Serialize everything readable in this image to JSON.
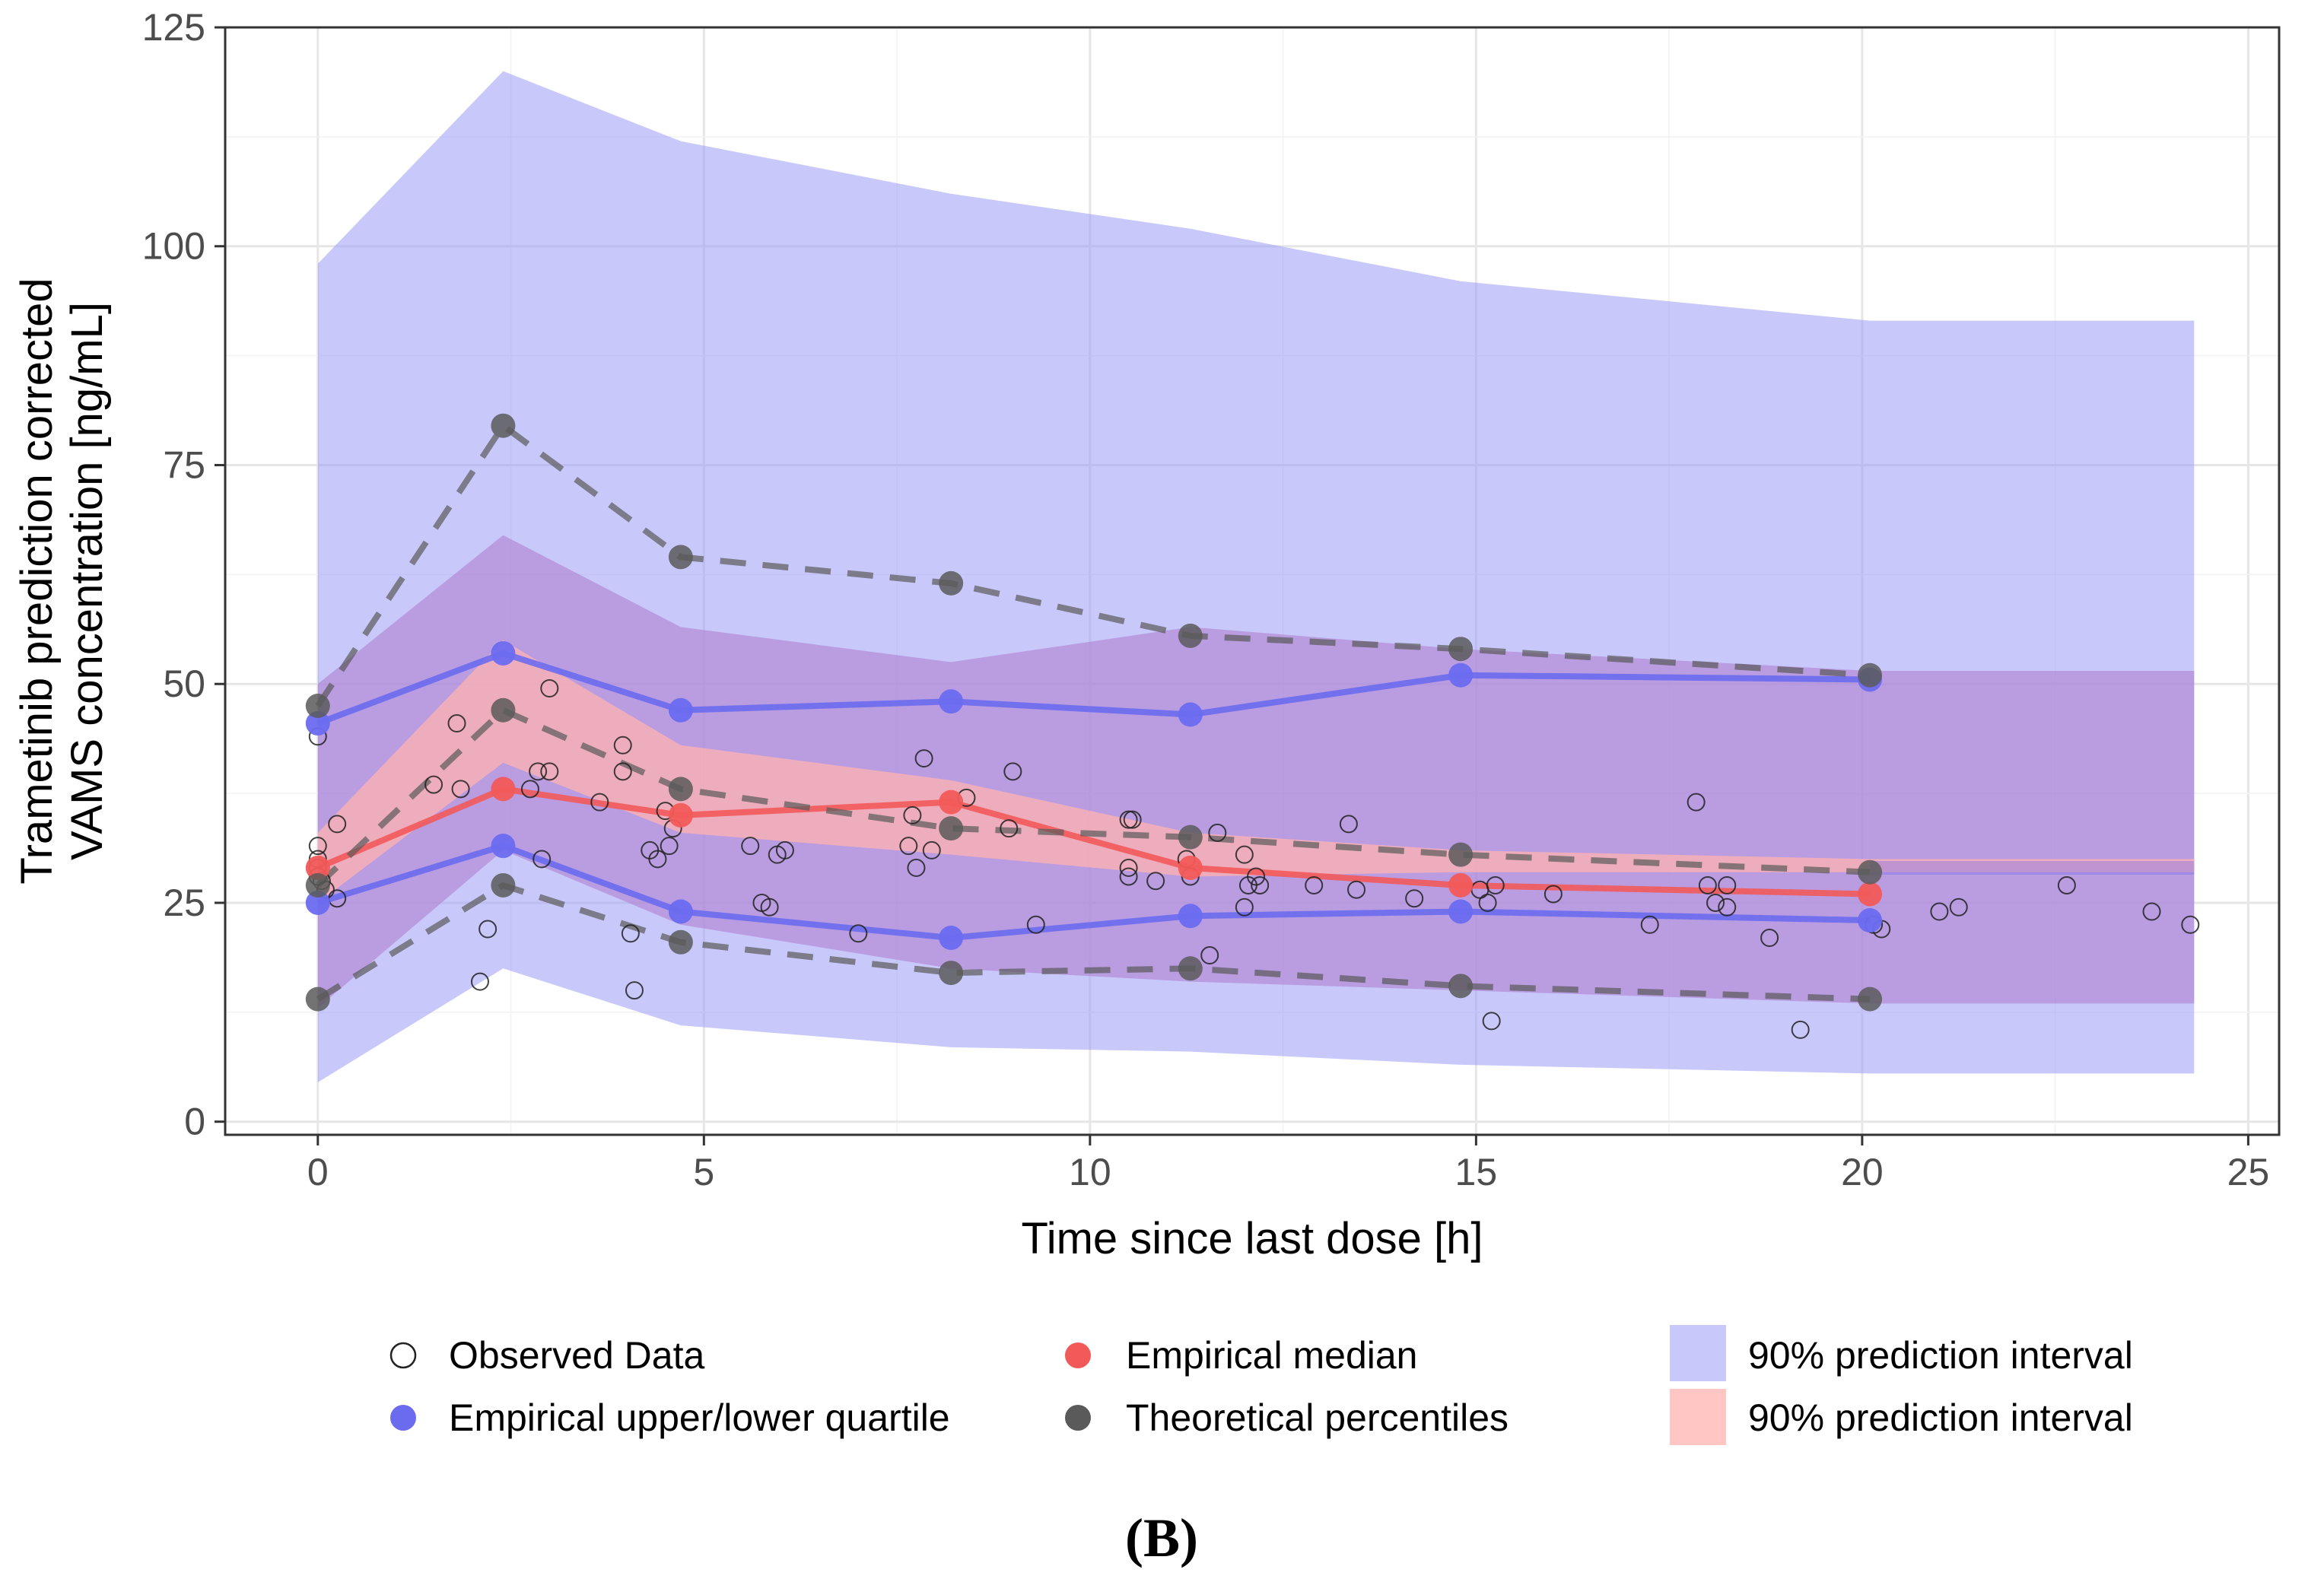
{
  "figure_label": "(B)",
  "colors": {
    "pi_outer": "#9b9bf7",
    "pi_mid_purple": "#b07fd0",
    "pi_median_pink": "#ffb3b0",
    "quartile_line": "#6b6bf0",
    "median_line": "#f25a5a",
    "theoretical": "#5a5a5a",
    "observed_edge": "#222222"
  },
  "chart_data": {
    "type": "scatter",
    "title": "",
    "xlabel": "Time since last dose [h]",
    "ylabel_lines": [
      "Trametinib prediction corrected",
      "VAMS concentration [ng/mL]"
    ],
    "xlim": [
      -1.2,
      25.4
    ],
    "ylim": [
      -1.5,
      125
    ],
    "x_ticks": [
      0,
      5,
      10,
      15,
      20,
      25
    ],
    "y_ticks": [
      0,
      25,
      50,
      75,
      100,
      125
    ],
    "grid": true,
    "legend_position": "bottom",
    "bins_x": [
      0,
      2.4,
      4.7,
      8.2,
      11.3,
      14.8,
      20.1
    ],
    "prediction_interval_outer": {
      "x": [
        0,
        2.4,
        4.7,
        8.2,
        11.3,
        14.8,
        20.1,
        24.3
      ],
      "upper": [
        98,
        120,
        112,
        106,
        102,
        96,
        91.5,
        91.5
      ],
      "lower": [
        4.5,
        17.5,
        11,
        8.5,
        8,
        6.5,
        5.5,
        5.5
      ]
    },
    "prediction_interval_quartiles": {
      "x": [
        0,
        2.4,
        4.7,
        8.2,
        11.3,
        14.8,
        20.1,
        24.3
      ],
      "upper": [
        50,
        67,
        56.5,
        52.5,
        56.5,
        54,
        51.5,
        51.5
      ],
      "lower": [
        13,
        31,
        22.5,
        17.5,
        16,
        15,
        13.5,
        13.5
      ]
    },
    "prediction_interval_median": {
      "x": [
        0,
        2.4,
        4.7,
        8.2,
        11.3,
        14.8,
        20.1,
        24.3
      ],
      "upper": [
        33,
        55,
        43,
        39,
        33,
        31,
        30,
        30
      ],
      "lower": [
        25,
        41,
        33,
        30.5,
        28,
        28.5,
        28.5,
        28.5
      ]
    },
    "series": [
      {
        "name": "Empirical upper/lower quartile",
        "role": "quartile_upper",
        "x": [
          0,
          2.4,
          4.7,
          8.2,
          11.3,
          14.8,
          20.1
        ],
        "y": [
          45.5,
          53.5,
          47,
          48,
          46.5,
          51,
          50.5
        ]
      },
      {
        "name": "Empirical upper/lower quartile",
        "role": "quartile_lower",
        "x": [
          0,
          2.4,
          4.7,
          8.2,
          11.3,
          14.8,
          20.1
        ],
        "y": [
          25,
          31.5,
          24,
          21,
          23.5,
          24,
          23
        ]
      },
      {
        "name": "Empirical median",
        "role": "median",
        "x": [
          0,
          2.4,
          4.7,
          8.2,
          11.3,
          14.8,
          20.1
        ],
        "y": [
          29,
          38,
          35,
          36.5,
          29,
          27,
          26
        ]
      },
      {
        "name": "Theoretical percentiles",
        "role": "theory_upper",
        "x": [
          0,
          2.4,
          4.7,
          8.2,
          11.3,
          14.8,
          20.1
        ],
        "y": [
          47.5,
          79.5,
          64.5,
          61.5,
          55.5,
          54,
          51
        ]
      },
      {
        "name": "Theoretical percentiles",
        "role": "theory_median",
        "x": [
          0,
          2.4,
          4.7,
          8.2,
          11.3,
          14.8,
          20.1
        ],
        "y": [
          27,
          47,
          38,
          33.5,
          32.5,
          30.5,
          28.5
        ]
      },
      {
        "name": "Theoretical percentiles",
        "role": "theory_lower",
        "x": [
          0,
          2.4,
          4.7,
          8.2,
          11.3,
          14.8,
          20.1
        ],
        "y": [
          14,
          27,
          20.5,
          17,
          17.5,
          15.5,
          14
        ]
      }
    ],
    "observed": [
      [
        0,
        44
      ],
      [
        0,
        31.5
      ],
      [
        0,
        30
      ],
      [
        0,
        29
      ],
      [
        0,
        28
      ],
      [
        0.05,
        27.5
      ],
      [
        0.1,
        26.5
      ],
      [
        0.25,
        34
      ],
      [
        0.25,
        25.5
      ],
      [
        1.5,
        38.5
      ],
      [
        1.8,
        45.5
      ],
      [
        1.85,
        38
      ],
      [
        2.2,
        22
      ],
      [
        2.1,
        16
      ],
      [
        2.85,
        40
      ],
      [
        2.75,
        38
      ],
      [
        2.9,
        30
      ],
      [
        3.0,
        40
      ],
      [
        3.0,
        49.5
      ],
      [
        3.65,
        36.5
      ],
      [
        3.95,
        43
      ],
      [
        3.95,
        40
      ],
      [
        4.05,
        21.5
      ],
      [
        4.1,
        15
      ],
      [
        4.3,
        31
      ],
      [
        4.4,
        30
      ],
      [
        4.5,
        35.5
      ],
      [
        4.55,
        31.5
      ],
      [
        4.6,
        33.5
      ],
      [
        5.6,
        31.5
      ],
      [
        5.75,
        25
      ],
      [
        5.85,
        24.5
      ],
      [
        5.95,
        30.5
      ],
      [
        6.05,
        31
      ],
      [
        7.0,
        21.5
      ],
      [
        7.65,
        31.5
      ],
      [
        7.7,
        35
      ],
      [
        7.75,
        29
      ],
      [
        7.95,
        31
      ],
      [
        7.85,
        41.5
      ],
      [
        8.4,
        37
      ],
      [
        8.95,
        33.5
      ],
      [
        9.0,
        40
      ],
      [
        9.3,
        22.5
      ],
      [
        10.5,
        34.5
      ],
      [
        10.55,
        34.5
      ],
      [
        10.5,
        29
      ],
      [
        10.5,
        28
      ],
      [
        10.85,
        27.5
      ],
      [
        11.25,
        30
      ],
      [
        11.3,
        28
      ],
      [
        11.55,
        19
      ],
      [
        11.65,
        33
      ],
      [
        12.0,
        30.5
      ],
      [
        12.05,
        27
      ],
      [
        12.0,
        24.5
      ],
      [
        12.15,
        28
      ],
      [
        12.2,
        27
      ],
      [
        12.9,
        27
      ],
      [
        13.35,
        34
      ],
      [
        13.45,
        26.5
      ],
      [
        14.2,
        25.5
      ],
      [
        15.05,
        26.5
      ],
      [
        15.15,
        25
      ],
      [
        15.25,
        27
      ],
      [
        15.2,
        11.5
      ],
      [
        16.0,
        26
      ],
      [
        17.25,
        22.5
      ],
      [
        17.85,
        36.5
      ],
      [
        18.0,
        27
      ],
      [
        18.1,
        25
      ],
      [
        18.25,
        27
      ],
      [
        18.25,
        24.5
      ],
      [
        18.8,
        21
      ],
      [
        19.2,
        10.5
      ],
      [
        20.15,
        22.5
      ],
      [
        20.25,
        22
      ],
      [
        21.0,
        24
      ],
      [
        21.25,
        24.5
      ],
      [
        22.65,
        27
      ],
      [
        23.75,
        24
      ],
      [
        24.25,
        22.5
      ]
    ],
    "legend": [
      {
        "label": "Observed Data",
        "kind": "open-circle"
      },
      {
        "label": "Empirical upper/lower quartile",
        "kind": "quartile-dot"
      },
      {
        "label": "Empirical median",
        "kind": "median-dot"
      },
      {
        "label": "Theoretical percentiles",
        "kind": "theory-dot"
      },
      {
        "label": "90% prediction interval",
        "kind": "outer-band"
      },
      {
        "label": "90% prediction interval",
        "kind": "median-band"
      }
    ]
  }
}
